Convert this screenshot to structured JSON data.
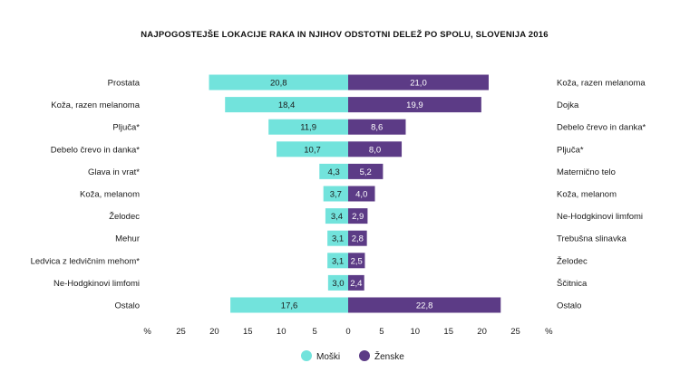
{
  "chart_data": {
    "type": "bar",
    "orientation": "horizontal-butterfly",
    "title": "NAJPOGOSTEJŠE LOKACIJE RAKA IN NJIHOV ODSTOTNI DELEŽ PO SPOLU, SLOVENIJA 2016",
    "xlabel": "%",
    "x_ticks": [
      "25",
      "20",
      "15",
      "10",
      "5",
      "0",
      "5",
      "10",
      "15",
      "20",
      "25"
    ],
    "xlim": [
      -30,
      30
    ],
    "grid": false,
    "legend_position": "bottom",
    "series": [
      {
        "name": "Moški",
        "color": "#72e3dc",
        "side": "left",
        "categories": [
          "Prostata",
          "Koža, razen melanoma",
          "Pljuča*",
          "Debelo črevo in danka*",
          "Glava in vrat*",
          "Koža, melanom",
          "Želodec",
          "Mehur",
          "Ledvica z ledvičnim mehom*",
          "Ne-Hodgkinovi limfomi",
          "Ostalo"
        ],
        "values": [
          20.8,
          18.4,
          11.9,
          10.7,
          4.3,
          3.7,
          3.4,
          3.1,
          3.1,
          3.0,
          17.6
        ],
        "value_labels": [
          "20,8",
          "18,4",
          "11,9",
          "10,7",
          "4,3",
          "3,7",
          "3,4",
          "3,1",
          "3,1",
          "3,0",
          "17,6"
        ]
      },
      {
        "name": "Ženske",
        "color": "#5c3b86",
        "side": "right",
        "categories": [
          "Koža, razen melanoma",
          "Dojka",
          "Debelo črevo in danka*",
          "Pljuča*",
          "Maternično telo",
          "Koža, melanom",
          "Ne-Hodgkinovi limfomi",
          "Trebušna slinavka",
          "Želodec",
          "Ščitnica",
          "Ostalo"
        ],
        "values": [
          21.0,
          19.9,
          8.6,
          8.0,
          5.2,
          4.0,
          2.9,
          2.8,
          2.5,
          2.4,
          22.8
        ],
        "value_labels": [
          "21,0",
          "19,9",
          "8,6",
          "8,0",
          "5,2",
          "4,0",
          "2,9",
          "2,8",
          "2,5",
          "2,4",
          "22,8"
        ]
      }
    ]
  }
}
